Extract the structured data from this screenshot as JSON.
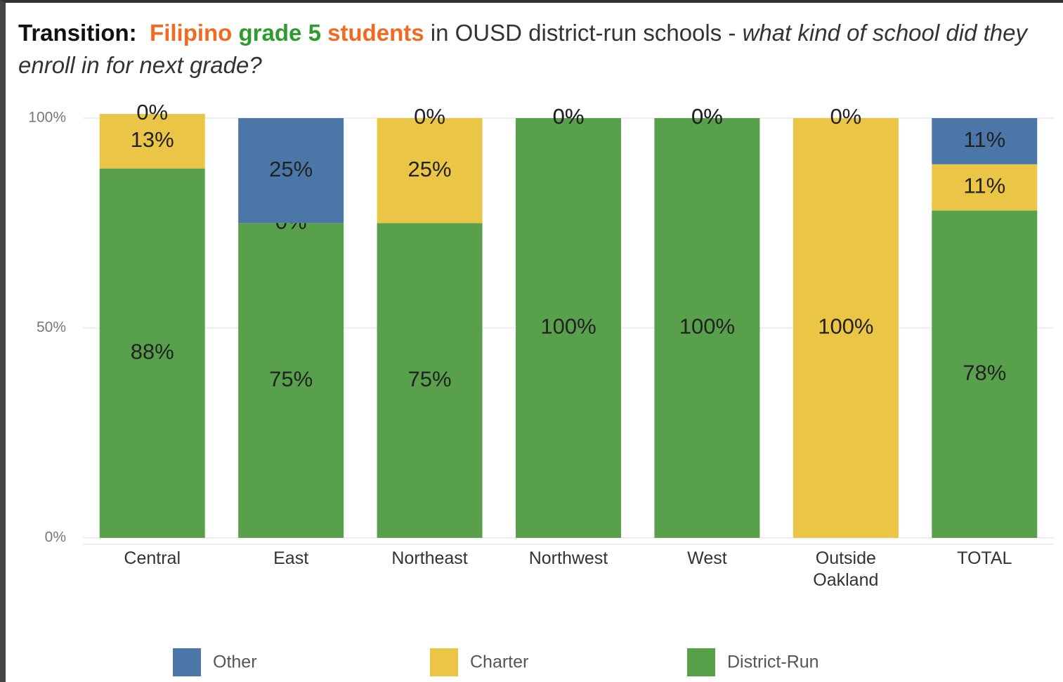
{
  "chart_data": {
    "type": "stacked_bar",
    "title_parts": [
      "Transition:",
      "Filipino",
      "grade",
      "5",
      "students",
      "in OUSD district-run schools -",
      "what kind of school did they enroll in for next grade?"
    ],
    "categories": [
      "Central",
      "East",
      "Northeast",
      "Northwest",
      "West",
      "Outside\nOakland",
      "TOTAL"
    ],
    "series": [
      {
        "name": "Other",
        "color": "#4a76a8",
        "values": [
          0,
          25,
          0,
          0,
          0,
          0,
          11
        ],
        "value_labels": [
          "0%",
          "25%",
          "0%",
          "0%",
          "0%",
          "0%",
          "11%"
        ]
      },
      {
        "name": "Charter",
        "color": "#ebc545",
        "values": [
          13,
          0,
          25,
          0,
          0,
          100,
          11
        ],
        "value_labels": [
          "13%",
          "0%",
          "25%",
          "0%",
          "0%",
          "100%",
          "11%"
        ]
      },
      {
        "name": "District-Run",
        "color": "#58a04b",
        "values": [
          88,
          75,
          75,
          100,
          100,
          0,
          78
        ],
        "value_labels": [
          "88%",
          "75%",
          "75%",
          "100%",
          "100%",
          "0%",
          "78%"
        ]
      }
    ],
    "ylim": [
      0,
      100
    ],
    "yticks": [
      {
        "value": 0,
        "label": "0%"
      },
      {
        "value": 50,
        "label": "50%"
      },
      {
        "value": 100,
        "label": "100%"
      }
    ],
    "grid": true,
    "legend": "bottom"
  }
}
